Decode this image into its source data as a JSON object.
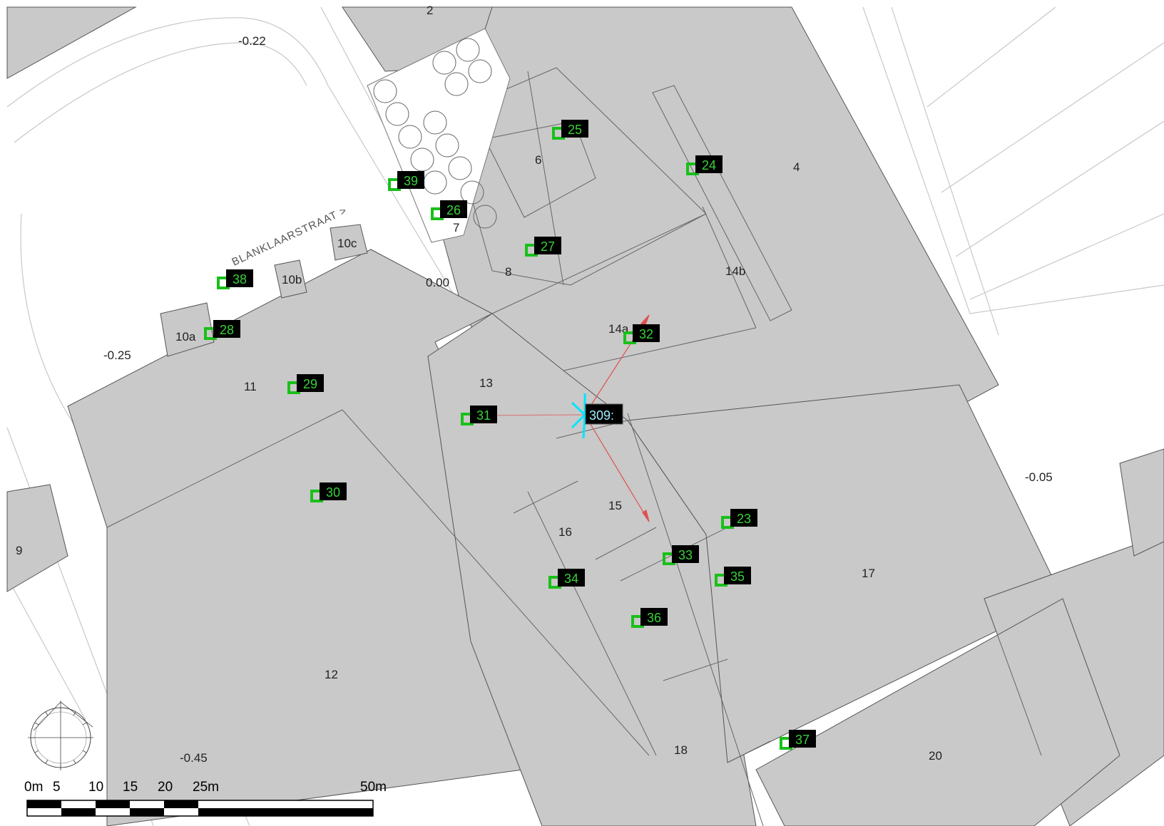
{
  "map": {
    "street_name": "BLANKLAARSTRAAT >",
    "plot_labels": [
      "2",
      "4",
      "6",
      "7",
      "8",
      "9",
      "10a",
      "10b",
      "10c",
      "11",
      "12",
      "13",
      "14a",
      "14b",
      "15",
      "16",
      "17",
      "18",
      "20"
    ],
    "elevations": [
      "-0.22",
      "-0.25",
      "0.00",
      "-0.05",
      "-0.45"
    ],
    "markers": [
      "25",
      "24",
      "39",
      "26",
      "27",
      "38",
      "28",
      "29",
      "32",
      "31",
      "30",
      "23",
      "33",
      "35",
      "34",
      "36",
      "37"
    ],
    "selected_marker": "309:",
    "scale_labels": [
      "0m",
      "5",
      "10",
      "15",
      "20",
      "25m",
      "50m"
    ],
    "colors": {
      "building": "#c9c9c9",
      "marker_bg": "#000000",
      "marker_text": "#39d039",
      "selected": "#00e5ff",
      "view_ray": "#e05050"
    }
  }
}
